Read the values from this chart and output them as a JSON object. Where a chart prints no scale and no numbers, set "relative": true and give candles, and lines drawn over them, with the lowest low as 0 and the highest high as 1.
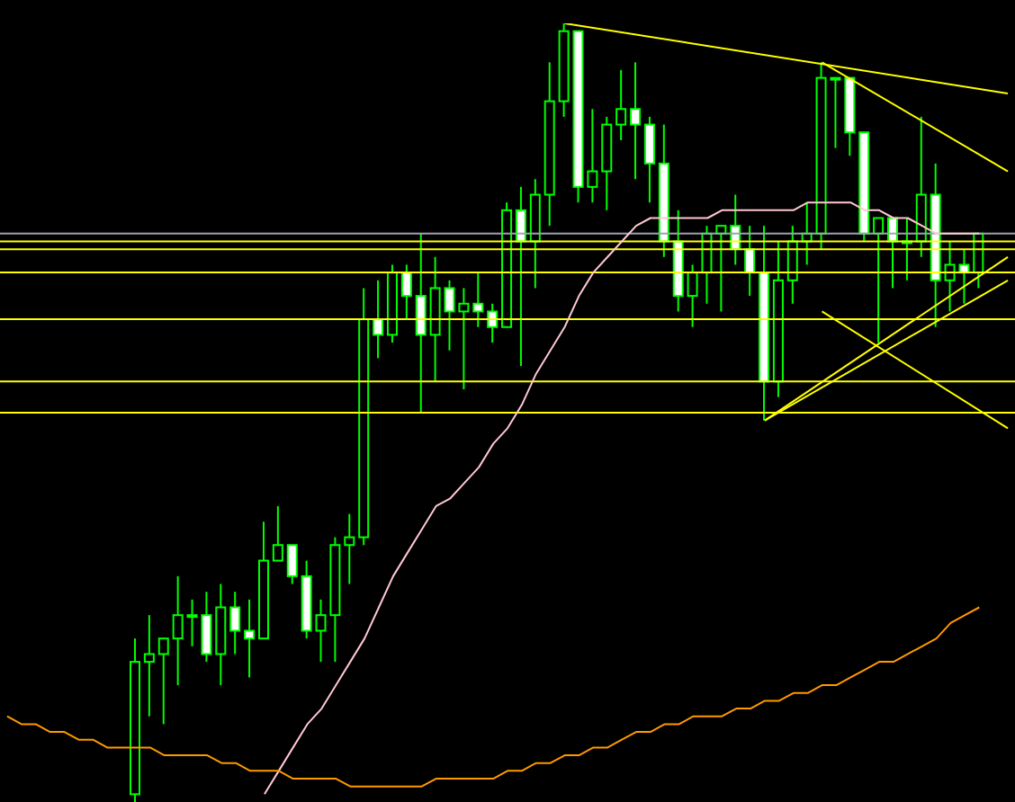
{
  "chart_data": {
    "type": "candlestick",
    "relative": true,
    "color": "#00ff00",
    "grid": false,
    "legend": false,
    "categories": [
      null,
      null,
      null,
      null,
      null,
      null,
      null,
      null,
      null,
      null,
      null,
      null,
      null,
      null,
      null,
      null,
      null,
      null,
      null,
      null,
      null,
      null,
      null,
      null,
      null,
      null,
      null,
      null,
      null,
      null,
      null,
      null,
      null,
      null,
      null,
      null,
      null,
      null,
      null,
      null,
      null,
      null,
      null,
      null,
      null,
      null,
      null,
      null,
      null,
      null,
      null,
      null,
      null,
      null,
      null,
      null,
      null,
      null,
      null,
      null,
      null,
      null,
      null,
      null,
      null,
      null,
      null,
      null,
      null,
      null,
      null
    ],
    "ohlc": [
      null,
      null,
      null,
      null,
      null,
      null,
      null,
      null,
      null,
      [
        0.01,
        0.21,
        0,
        0.18
      ],
      [
        0.18,
        0.24,
        0.11,
        0.19
      ],
      [
        0.19,
        0.21,
        0.1,
        0.21
      ],
      [
        0.21,
        0.29,
        0.15,
        0.24
      ],
      [
        0.24,
        0.26,
        0.2,
        0.24
      ],
      [
        0.24,
        0.27,
        0.18,
        0.19
      ],
      [
        0.19,
        0.28,
        0.15,
        0.25
      ],
      [
        0.25,
        0.27,
        0.19,
        0.22
      ],
      [
        0.22,
        0.26,
        0.16,
        0.21
      ],
      [
        0.21,
        0.36,
        0.21,
        0.31
      ],
      [
        0.31,
        0.38,
        0.31,
        0.33
      ],
      [
        0.33,
        0.33,
        0.28,
        0.29
      ],
      [
        0.29,
        0.31,
        0.21,
        0.22
      ],
      [
        0.22,
        0.26,
        0.18,
        0.24
      ],
      [
        0.24,
        0.34,
        0.18,
        0.33
      ],
      [
        0.33,
        0.37,
        0.28,
        0.34
      ],
      [
        0.34,
        0.66,
        0.33,
        0.62
      ],
      [
        0.62,
        0.67,
        0.57,
        0.6
      ],
      [
        0.6,
        0.69,
        0.59,
        0.68
      ],
      [
        0.68,
        0.69,
        0.62,
        0.65
      ],
      [
        0.65,
        0.73,
        0.5,
        0.6
      ],
      [
        0.6,
        0.7,
        0.54,
        0.66
      ],
      [
        0.66,
        0.67,
        0.58,
        0.63
      ],
      [
        0.63,
        0.66,
        0.53,
        0.64
      ],
      [
        0.64,
        0.68,
        0.61,
        0.63
      ],
      [
        0.63,
        0.64,
        0.59,
        0.61
      ],
      [
        0.61,
        0.77,
        0.61,
        0.76
      ],
      [
        0.76,
        0.79,
        0.56,
        0.72
      ],
      [
        0.72,
        0.8,
        0.66,
        0.78
      ],
      [
        0.78,
        0.95,
        0.74,
        0.9
      ],
      [
        0.9,
        1,
        0.88,
        0.99
      ],
      [
        0.99,
        0.99,
        0.77,
        0.79
      ],
      [
        0.79,
        0.89,
        0.77,
        0.81
      ],
      [
        0.81,
        0.88,
        0.76,
        0.87
      ],
      [
        0.87,
        0.94,
        0.85,
        0.89
      ],
      [
        0.89,
        0.95,
        0.8,
        0.87
      ],
      [
        0.87,
        0.88,
        0.77,
        0.82
      ],
      [
        0.82,
        0.87,
        0.7,
        0.72
      ],
      [
        0.72,
        0.76,
        0.63,
        0.65
      ],
      [
        0.65,
        0.69,
        0.61,
        0.68
      ],
      [
        0.68,
        0.74,
        0.64,
        0.73
      ],
      [
        0.73,
        0.74,
        0.63,
        0.74
      ],
      [
        0.74,
        0.78,
        0.69,
        0.71
      ],
      [
        0.71,
        0.74,
        0.65,
        0.68
      ],
      [
        0.68,
        0.74,
        0.49,
        0.54
      ],
      [
        0.54,
        0.72,
        0.52,
        0.67
      ],
      [
        0.67,
        0.74,
        0.64,
        0.72
      ],
      [
        0.72,
        0.77,
        0.69,
        0.73
      ],
      [
        0.73,
        0.95,
        0.71,
        0.93
      ],
      [
        0.93,
        0.93,
        0.84,
        0.93
      ],
      [
        0.93,
        0.93,
        0.83,
        0.86
      ],
      [
        0.86,
        0.86,
        0.72,
        0.73
      ],
      [
        0.73,
        0.75,
        0.59,
        0.75
      ],
      [
        0.75,
        0.75,
        0.66,
        0.72
      ],
      [
        0.72,
        0.75,
        0.67,
        0.72
      ],
      [
        0.72,
        0.88,
        0.7,
        0.78
      ],
      [
        0.78,
        0.82,
        0.61,
        0.67
      ],
      [
        0.67,
        0.72,
        0.63,
        0.69
      ],
      [
        0.69,
        0.71,
        0.64,
        0.68
      ],
      [
        0.68,
        0.73,
        0.66,
        0.73
      ],
      null,
      null
    ],
    "series": [
      {
        "type": "line",
        "color": "#ffc8d2",
        "values": [
          null,
          null,
          null,
          null,
          null,
          null,
          null,
          null,
          null,
          null,
          null,
          null,
          null,
          null,
          null,
          null,
          null,
          null,
          0.01,
          0.04,
          0.07,
          0.1,
          0.12,
          0.15,
          0.18,
          0.21,
          0.25,
          0.29,
          0.32,
          0.35,
          0.38,
          0.39,
          0.41,
          0.43,
          0.46,
          0.48,
          0.51,
          0.55,
          0.58,
          0.61,
          0.65,
          0.68,
          0.7,
          0.72,
          0.74,
          0.75,
          0.75,
          0.75,
          0.75,
          0.75,
          0.76,
          0.76,
          0.76,
          0.76,
          0.76,
          0.76,
          0.77,
          0.77,
          0.77,
          0.77,
          0.76,
          0.76,
          0.75,
          0.75,
          0.74,
          0.73,
          0.73,
          0.73,
          0.73,
          null,
          null
        ]
      },
      {
        "type": "line",
        "color": "#ff9900",
        "values": [
          0.11,
          0.1,
          0.1,
          0.09,
          0.09,
          0.08,
          0.08,
          0.07,
          0.07,
          0.07,
          0.07,
          0.06,
          0.06,
          0.06,
          0.06,
          0.05,
          0.05,
          0.04,
          0.04,
          0.04,
          0.03,
          0.03,
          0.03,
          0.03,
          0.02,
          0.02,
          0.02,
          0.02,
          0.02,
          0.02,
          0.03,
          0.03,
          0.03,
          0.03,
          0.03,
          0.04,
          0.04,
          0.05,
          0.05,
          0.06,
          0.06,
          0.07,
          0.07,
          0.08,
          0.09,
          0.09,
          0.1,
          0.1,
          0.11,
          0.11,
          0.11,
          0.12,
          0.12,
          0.13,
          0.13,
          0.14,
          0.14,
          0.15,
          0.15,
          0.16,
          0.17,
          0.18,
          0.18,
          0.19,
          0.2,
          0.21,
          0.23,
          0.24,
          0.25,
          null,
          null
        ]
      },
      {
        "type": "line",
        "color": "#ffff00",
        "values": [
          null,
          null,
          null,
          null,
          null,
          null,
          null,
          null,
          null,
          null,
          null,
          null,
          null,
          null,
          null,
          null,
          null,
          null,
          null,
          null,
          null,
          null,
          null,
          null,
          null,
          null,
          null,
          null,
          null,
          null,
          null,
          null,
          null,
          null,
          null,
          null,
          null,
          null,
          null,
          1,
          null,
          null,
          null,
          null,
          null,
          null,
          null,
          null,
          null,
          null,
          null,
          null,
          null,
          null,
          null,
          null,
          null,
          null,
          null,
          null,
          null,
          null,
          null,
          null,
          null,
          null,
          null,
          null,
          null,
          null,
          0.91
        ]
      },
      {
        "type": "line",
        "color": "#ffff00",
        "values": [
          null,
          null,
          null,
          null,
          null,
          null,
          null,
          null,
          null,
          null,
          null,
          null,
          null,
          null,
          null,
          null,
          null,
          null,
          null,
          null,
          null,
          null,
          null,
          null,
          null,
          null,
          null,
          null,
          null,
          null,
          null,
          null,
          null,
          null,
          null,
          null,
          null,
          null,
          null,
          null,
          null,
          null,
          null,
          null,
          null,
          null,
          null,
          null,
          null,
          null,
          null,
          null,
          null,
          null,
          null,
          null,
          null,
          0.95,
          null,
          null,
          null,
          null,
          null,
          null,
          null,
          null,
          null,
          null,
          null,
          null,
          0.81
        ]
      },
      {
        "type": "line",
        "color": "#ffff00",
        "values": [
          null,
          null,
          null,
          null,
          null,
          null,
          null,
          null,
          null,
          null,
          null,
          null,
          null,
          null,
          null,
          null,
          null,
          null,
          null,
          null,
          null,
          null,
          null,
          null,
          null,
          null,
          null,
          null,
          null,
          null,
          null,
          null,
          null,
          null,
          null,
          null,
          null,
          null,
          null,
          null,
          null,
          null,
          null,
          null,
          null,
          null,
          null,
          null,
          null,
          null,
          null,
          null,
          null,
          0.49,
          null,
          null,
          null,
          null,
          null,
          null,
          null,
          null,
          null,
          null,
          null,
          null,
          null,
          null,
          null,
          null,
          0.7
        ]
      },
      {
        "type": "line",
        "color": "#ffff00",
        "values": [
          null,
          null,
          null,
          null,
          null,
          null,
          null,
          null,
          null,
          null,
          null,
          null,
          null,
          null,
          null,
          null,
          null,
          null,
          null,
          null,
          null,
          null,
          null,
          null,
          null,
          null,
          null,
          null,
          null,
          null,
          null,
          null,
          null,
          null,
          null,
          null,
          null,
          null,
          null,
          null,
          null,
          null,
          null,
          null,
          null,
          null,
          null,
          null,
          null,
          null,
          null,
          null,
          null,
          0.49,
          null,
          null,
          null,
          null,
          null,
          null,
          null,
          null,
          null,
          null,
          null,
          null,
          null,
          null,
          null,
          null,
          0.67
        ]
      },
      {
        "type": "line",
        "color": "#ffff00",
        "values": [
          null,
          null,
          null,
          null,
          null,
          null,
          null,
          null,
          null,
          null,
          null,
          null,
          null,
          null,
          null,
          null,
          null,
          null,
          null,
          null,
          null,
          null,
          null,
          null,
          null,
          null,
          null,
          null,
          null,
          null,
          null,
          null,
          null,
          null,
          null,
          null,
          null,
          null,
          null,
          null,
          null,
          null,
          null,
          null,
          null,
          null,
          null,
          null,
          null,
          null,
          null,
          null,
          null,
          null,
          null,
          null,
          null,
          0.63,
          null,
          null,
          null,
          null,
          null,
          null,
          null,
          null,
          null,
          null,
          null,
          null,
          0.48
        ]
      }
    ],
    "ref_lines": [
      {
        "axis": "y",
        "value": 0.73,
        "color": "#a0a0b4"
      },
      {
        "axis": "y",
        "value": 0.72,
        "color": "#ffff00"
      },
      {
        "axis": "y",
        "value": 0.71,
        "color": "#ffff00"
      },
      {
        "axis": "y",
        "value": 0.68,
        "color": "#ffff00"
      },
      {
        "axis": "y",
        "value": 0.62,
        "color": "#ffff00"
      },
      {
        "axis": "y",
        "value": 0.54,
        "color": "#ffff00"
      },
      {
        "axis": "y",
        "value": 0.5,
        "color": "#ffff00"
      }
    ]
  }
}
